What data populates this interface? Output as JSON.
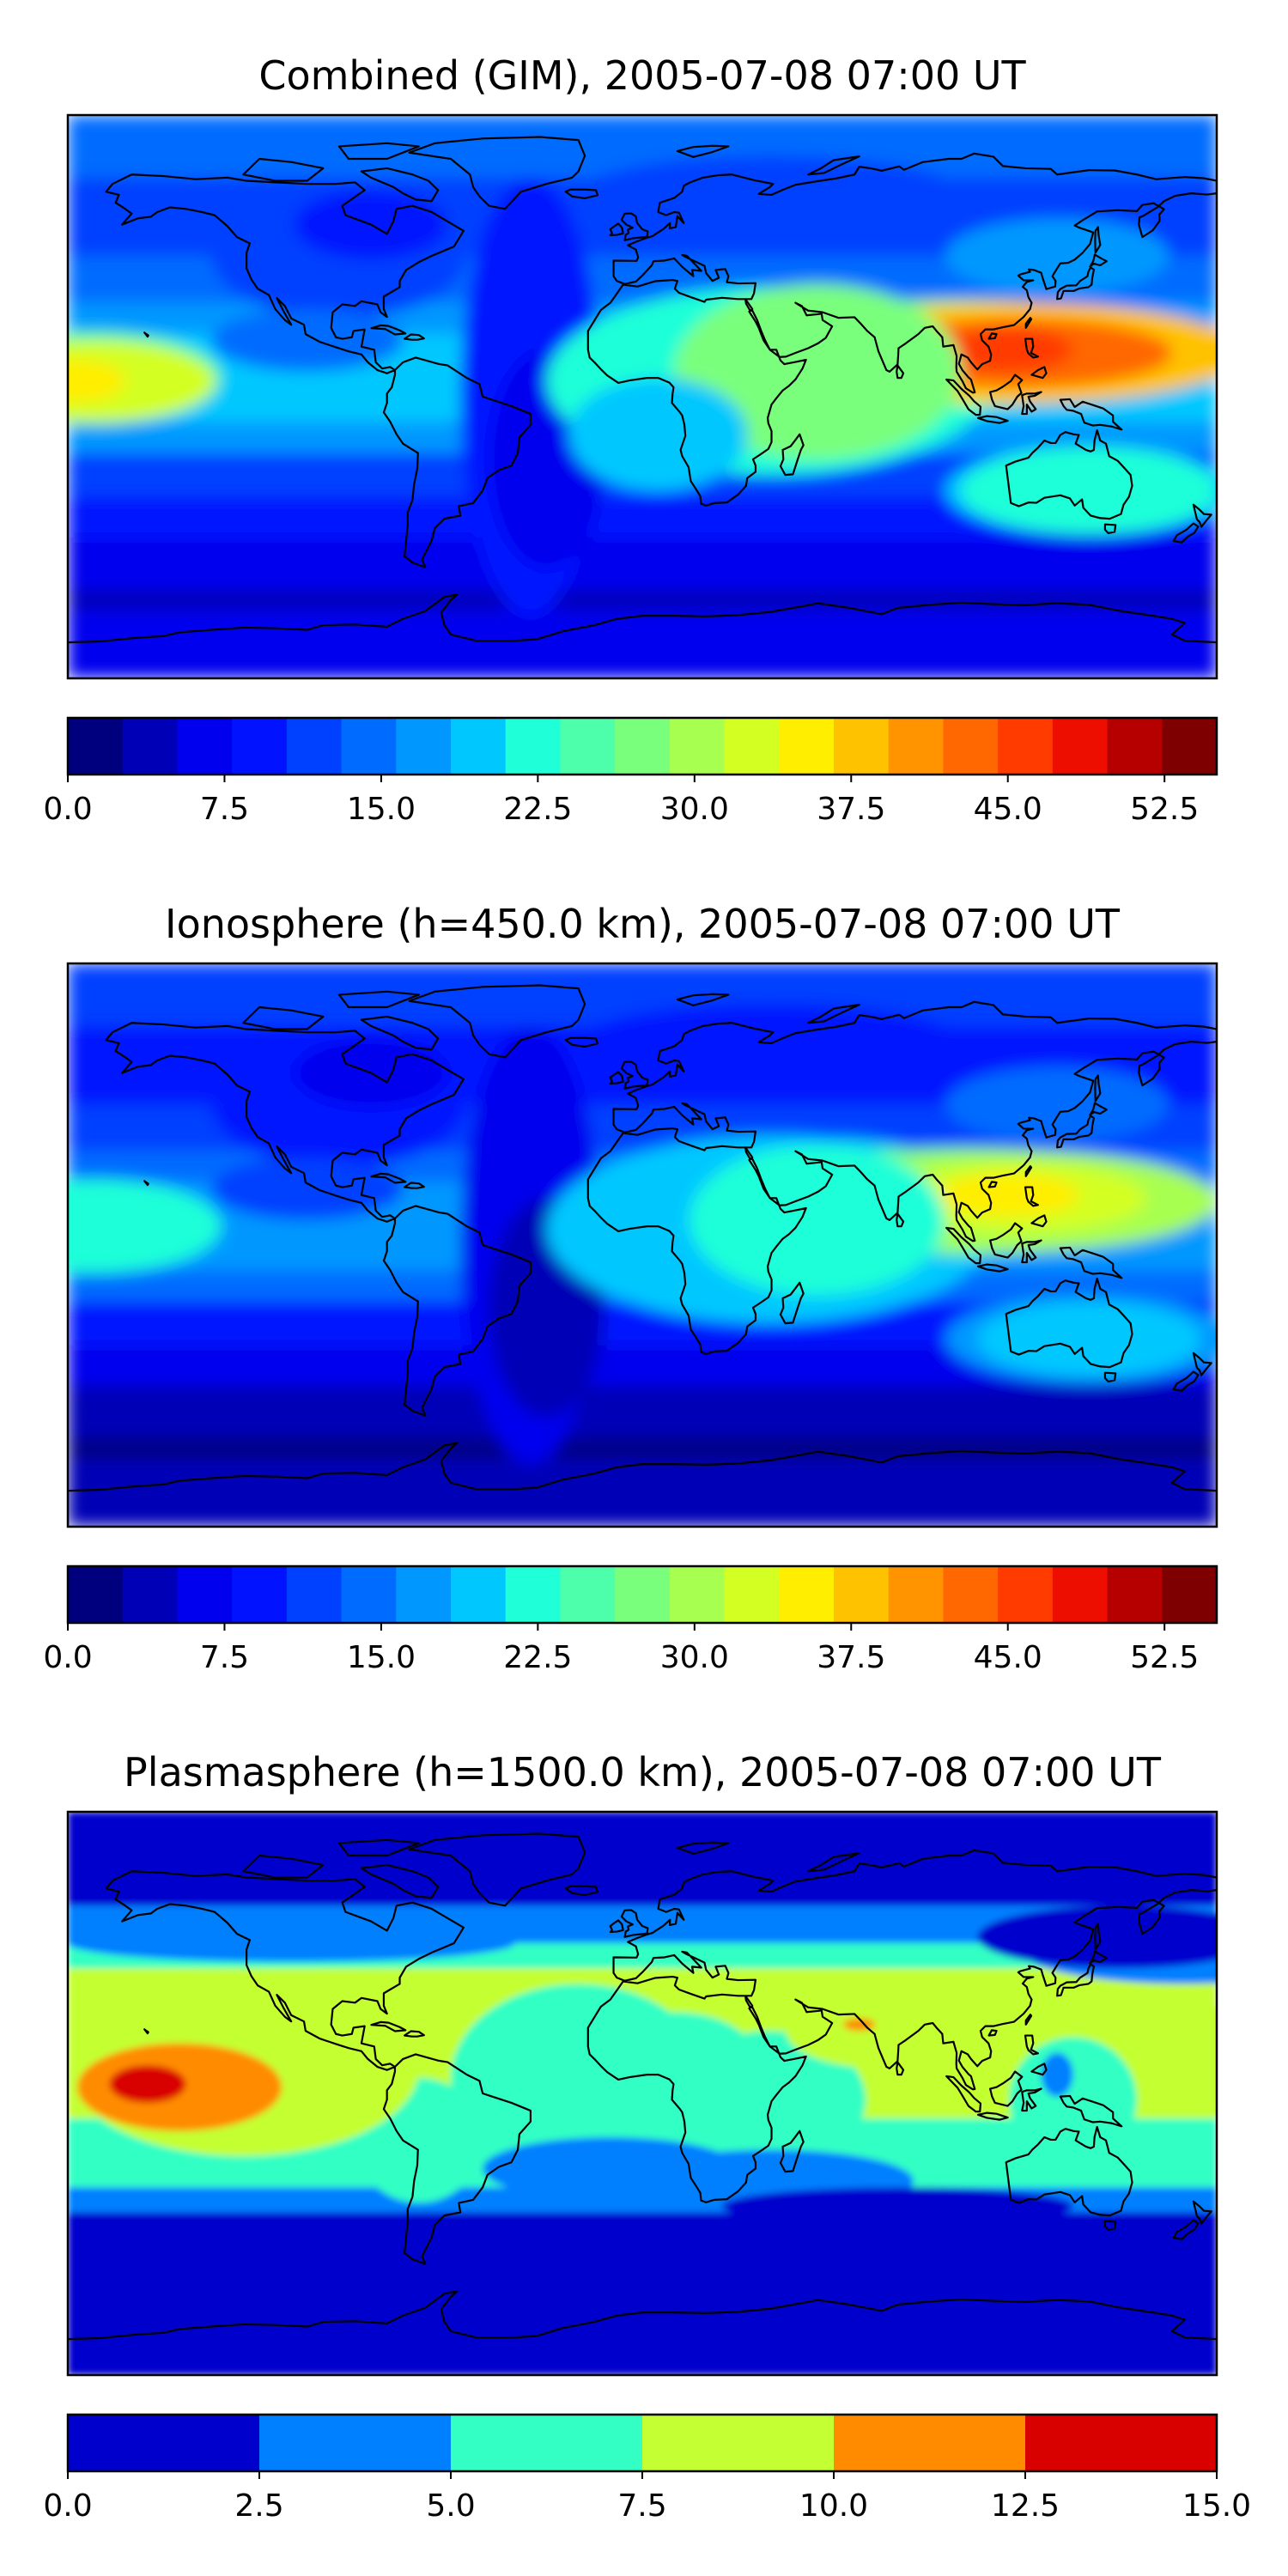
{
  "panels": [
    {
      "id": "combined",
      "title": "Combined (GIM), 2005-07-08 07:00 UT",
      "colorbar": {
        "min": 0,
        "max": 55,
        "colors": [
          "#00007f",
          "#0000b6",
          "#0000ee",
          "#0012ff",
          "#0040ff",
          "#006cff",
          "#0098ff",
          "#00c8ff",
          "#1fffd8",
          "#4dffaa",
          "#7aff7d",
          "#a7ff50",
          "#d4ff23",
          "#ffee00",
          "#ffc200",
          "#ff9400",
          "#ff6700",
          "#ff3b00",
          "#ee0e00",
          "#b60000",
          "#7f0000"
        ],
        "ticks": [
          "0.0",
          "7.5",
          "15.0",
          "22.5",
          "30.0",
          "37.5",
          "45.0",
          "52.5"
        ],
        "tick_values": [
          0,
          7.5,
          15,
          22.5,
          30,
          37.5,
          45,
          52.5
        ]
      },
      "blobs": [
        {
          "lon": 120,
          "lat": 14,
          "rx": 68,
          "ry": 16,
          "level": 14
        },
        {
          "lon": 118,
          "lat": 14,
          "rx": 48,
          "ry": 11,
          "level": 16
        },
        {
          "lon": 115,
          "lat": 15,
          "rx": 20,
          "ry": 7,
          "level": 17
        },
        {
          "lon": -172,
          "lat": 5,
          "rx": 38,
          "ry": 13,
          "level": 12
        },
        {
          "lon": -178,
          "lat": 5,
          "rx": 16,
          "ry": 7,
          "level": 13
        },
        {
          "lon": 55,
          "lat": 8,
          "rx": 45,
          "ry": 28,
          "level": 10
        },
        {
          "lon": 5,
          "lat": -12,
          "rx": 28,
          "ry": 18,
          "level": 7
        },
        {
          "lon": 140,
          "lat": -30,
          "rx": 40,
          "ry": 14,
          "level": 8
        }
      ]
    },
    {
      "id": "ionosphere",
      "title": "Ionosphere  (h=450.0 km), 2005-07-08 07:00 UT",
      "colorbar": {
        "min": 0,
        "max": 55,
        "colors": [
          "#00007f",
          "#0000b6",
          "#0000ee",
          "#0012ff",
          "#0040ff",
          "#006cff",
          "#0098ff",
          "#00c8ff",
          "#1fffd8",
          "#4dffaa",
          "#7aff7d",
          "#a7ff50",
          "#d4ff23",
          "#ffee00",
          "#ffc200",
          "#ff9400",
          "#ff6700",
          "#ff3b00",
          "#ee0e00",
          "#b60000",
          "#7f0000"
        ],
        "ticks": [
          "0.0",
          "7.5",
          "15.0",
          "22.5",
          "30.0",
          "37.5",
          "45.0",
          "52.5"
        ],
        "tick_values": [
          0,
          7.5,
          15,
          22.5,
          30,
          37.5,
          45,
          52.5
        ]
      },
      "blobs": [
        {
          "lon": 118,
          "lat": 14,
          "rx": 62,
          "ry": 16,
          "level": 11
        },
        {
          "lon": 118,
          "lat": 15,
          "rx": 40,
          "ry": 11,
          "level": 12
        },
        {
          "lon": 115,
          "lat": 16,
          "rx": 22,
          "ry": 7,
          "level": 13
        },
        {
          "lon": -172,
          "lat": 5,
          "rx": 32,
          "ry": 12,
          "level": 8
        },
        {
          "lon": 55,
          "lat": 8,
          "rx": 40,
          "ry": 24,
          "level": 8
        },
        {
          "lon": 140,
          "lat": -30,
          "rx": 35,
          "ry": 12,
          "level": 7
        }
      ]
    },
    {
      "id": "plasmasphere",
      "title": "Plasmasphere (h=1500.0 km), 2005-07-08 07:00 UT",
      "colorbar": {
        "min": 0,
        "max": 15,
        "colors": [
          "#0000cd",
          "#0080ff",
          "#33ffc4",
          "#c4ff33",
          "#ff8c00",
          "#d90000"
        ],
        "ticks": [
          "0.0",
          "2.5",
          "5.0",
          "7.5",
          "10.0",
          "12.5",
          "15.0"
        ],
        "tick_values": [
          0,
          2.5,
          5,
          7.5,
          10,
          12.5,
          15
        ]
      },
      "blobs": [
        {
          "lon": -145,
          "lat": 2,
          "rx": 32,
          "ry": 14,
          "level": 4
        },
        {
          "lon": -155,
          "lat": 3,
          "rx": 12,
          "ry": 6,
          "level": 5
        },
        {
          "lon": 68,
          "lat": 22,
          "rx": 5,
          "ry": 2,
          "level": 4
        }
      ]
    }
  ]
}
